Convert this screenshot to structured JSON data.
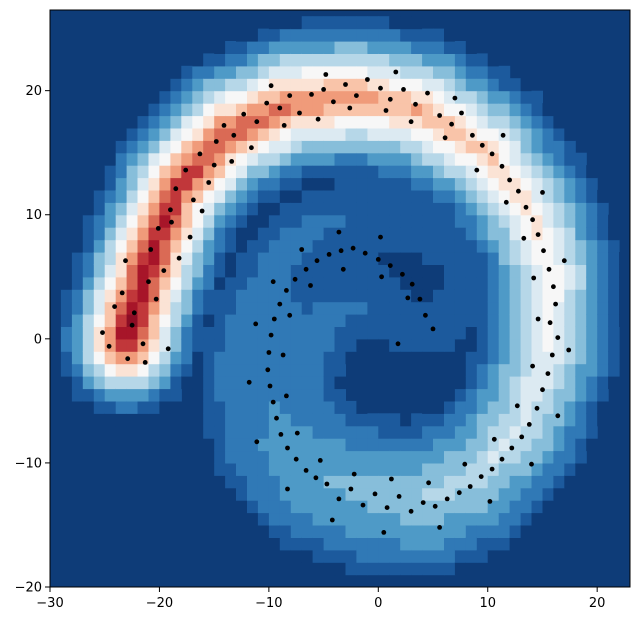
{
  "chart_data": {
    "type": "contour",
    "title": "",
    "xlabel": "",
    "ylabel": "",
    "xlim": [
      -30,
      23
    ],
    "ylim": [
      -20,
      26.5
    ],
    "xticks": [
      -30,
      -20,
      -10,
      0,
      10,
      20
    ],
    "yticks": [
      -20,
      -10,
      0,
      10,
      20
    ],
    "xtick_labels": [
      "−30",
      "−20",
      "−10",
      "0",
      "10",
      "20"
    ],
    "ytick_labels": [
      "−20",
      "−10",
      "0",
      "10",
      "20"
    ],
    "grid": false,
    "background_color": "#0e3c78",
    "colormap": "RdBu_r",
    "colormap_stops": [
      "#0e3c78",
      "#2166ac",
      "#4393c3",
      "#92c5de",
      "#d1e5f0",
      "#f7f7f7",
      "#fddbc7",
      "#f4a582",
      "#d6604d",
      "#b2182b",
      "#8c0d25"
    ],
    "field_model": "spiral: field value rises from about -1 (blue) at the inner end of the arm to about +1 (red) at the outer end",
    "spiral_arm_centerline": [
      {
        "x": 4,
        "y": 5
      },
      {
        "x": -1,
        "y": 7
      },
      {
        "x": -6,
        "y": 5
      },
      {
        "x": -9,
        "y": 1
      },
      {
        "x": -10,
        "y": -3
      },
      {
        "x": -9,
        "y": -8
      },
      {
        "x": -6,
        "y": -11
      },
      {
        "x": -1,
        "y": -12.5
      },
      {
        "x": 4,
        "y": -13
      },
      {
        "x": 9,
        "y": -11
      },
      {
        "x": 13,
        "y": -7
      },
      {
        "x": 15.5,
        "y": -1
      },
      {
        "x": 16,
        "y": 5
      },
      {
        "x": 14,
        "y": 10
      },
      {
        "x": 10,
        "y": 15
      },
      {
        "x": 4,
        "y": 18.5
      },
      {
        "x": -2,
        "y": 19.5
      },
      {
        "x": -8,
        "y": 19
      },
      {
        "x": -14,
        "y": 16.5
      },
      {
        "x": -18.5,
        "y": 12
      },
      {
        "x": -21,
        "y": 6
      },
      {
        "x": -23,
        "y": 0
      }
    ],
    "points": [
      {
        "x": -25.2,
        "y": 0.5
      },
      {
        "x": -24.1,
        "y": 2.6
      },
      {
        "x": -23.4,
        "y": 3.7
      },
      {
        "x": -23.1,
        "y": 6.3
      },
      {
        "x": -22.3,
        "y": 2.1
      },
      {
        "x": -22.9,
        "y": -1.6
      },
      {
        "x": -21.5,
        "y": -0.4
      },
      {
        "x": -21.0,
        "y": 4.6
      },
      {
        "x": -20.8,
        "y": 7.2
      },
      {
        "x": -20.1,
        "y": 8.9
      },
      {
        "x": -19.6,
        "y": 5.5
      },
      {
        "x": -19.2,
        "y": -0.8
      },
      {
        "x": -19.0,
        "y": 10.4
      },
      {
        "x": -18.5,
        "y": 12.1
      },
      {
        "x": -18.2,
        "y": 6.5
      },
      {
        "x": -17.6,
        "y": 13.6
      },
      {
        "x": -16.9,
        "y": 11.2
      },
      {
        "x": -16.3,
        "y": 14.9
      },
      {
        "x": -15.5,
        "y": 12.6
      },
      {
        "x": -14.8,
        "y": 15.9
      },
      {
        "x": -14.1,
        "y": 17.2
      },
      {
        "x": -13.2,
        "y": 16.4
      },
      {
        "x": -12.3,
        "y": 18.1
      },
      {
        "x": -11.1,
        "y": 17.5
      },
      {
        "x": -10.2,
        "y": 19.0
      },
      {
        "x": -9.0,
        "y": 18.6
      },
      {
        "x": -8.1,
        "y": 19.6
      },
      {
        "x": -7.2,
        "y": 18.2
      },
      {
        "x": -6.1,
        "y": 19.7
      },
      {
        "x": -5.0,
        "y": 20.1
      },
      {
        "x": -4.1,
        "y": 19.1
      },
      {
        "x": -3.0,
        "y": 20.5
      },
      {
        "x": -2.0,
        "y": 19.6
      },
      {
        "x": -1.0,
        "y": 20.9
      },
      {
        "x": 0.2,
        "y": 20.2
      },
      {
        "x": 1.1,
        "y": 19.3
      },
      {
        "x": 2.3,
        "y": 20.1
      },
      {
        "x": 3.4,
        "y": 18.9
      },
      {
        "x": 4.5,
        "y": 19.8
      },
      {
        "x": 5.6,
        "y": 18.0
      },
      {
        "x": 6.7,
        "y": 17.3
      },
      {
        "x": 7.6,
        "y": 18.2
      },
      {
        "x": 8.6,
        "y": 16.4
      },
      {
        "x": 9.5,
        "y": 15.6
      },
      {
        "x": 10.4,
        "y": 14.9
      },
      {
        "x": 11.3,
        "y": 13.9
      },
      {
        "x": 12.0,
        "y": 12.8
      },
      {
        "x": 12.8,
        "y": 11.9
      },
      {
        "x": 13.5,
        "y": 10.6
      },
      {
        "x": 14.1,
        "y": 9.6
      },
      {
        "x": 14.6,
        "y": 8.4
      },
      {
        "x": 15.1,
        "y": 7.1
      },
      {
        "x": 15.6,
        "y": 5.6
      },
      {
        "x": 16.0,
        "y": 4.2
      },
      {
        "x": 16.2,
        "y": 2.8
      },
      {
        "x": 15.7,
        "y": 1.3
      },
      {
        "x": 16.4,
        "y": 0.1
      },
      {
        "x": 15.9,
        "y": -1.3
      },
      {
        "x": 15.5,
        "y": -2.8
      },
      {
        "x": 15.0,
        "y": -4.1
      },
      {
        "x": 14.5,
        "y": -5.6
      },
      {
        "x": 13.8,
        "y": -6.9
      },
      {
        "x": 13.1,
        "y": -7.9
      },
      {
        "x": 12.2,
        "y": -8.8
      },
      {
        "x": 11.3,
        "y": -9.7
      },
      {
        "x": 10.4,
        "y": -10.5
      },
      {
        "x": 9.4,
        "y": -11.1
      },
      {
        "x": 8.4,
        "y": -11.9
      },
      {
        "x": 7.4,
        "y": -12.4
      },
      {
        "x": 6.3,
        "y": -12.9
      },
      {
        "x": 5.2,
        "y": -13.5
      },
      {
        "x": 4.1,
        "y": -13.2
      },
      {
        "x": 3.0,
        "y": -13.9
      },
      {
        "x": 1.9,
        "y": -12.7
      },
      {
        "x": 0.8,
        "y": -13.6
      },
      {
        "x": -0.3,
        "y": -12.5
      },
      {
        "x": -1.4,
        "y": -13.4
      },
      {
        "x": -2.5,
        "y": -12.1
      },
      {
        "x": -3.6,
        "y": -12.9
      },
      {
        "x": -4.7,
        "y": -11.7
      },
      {
        "x": -5.7,
        "y": -11.2
      },
      {
        "x": -6.6,
        "y": -10.6
      },
      {
        "x": -7.5,
        "y": -9.7
      },
      {
        "x": -8.3,
        "y": -8.8
      },
      {
        "x": -8.9,
        "y": -7.7
      },
      {
        "x": -9.3,
        "y": -6.4
      },
      {
        "x": -9.6,
        "y": -5.1
      },
      {
        "x": -9.9,
        "y": -3.8
      },
      {
        "x": -10.1,
        "y": -2.5
      },
      {
        "x": -10.0,
        "y": -1.1
      },
      {
        "x": -9.8,
        "y": 0.3
      },
      {
        "x": -9.5,
        "y": 1.6
      },
      {
        "x": -9.0,
        "y": 2.8
      },
      {
        "x": -8.4,
        "y": 3.9
      },
      {
        "x": -7.6,
        "y": 4.8
      },
      {
        "x": -6.6,
        "y": 5.6
      },
      {
        "x": -5.6,
        "y": 6.3
      },
      {
        "x": -4.5,
        "y": 6.8
      },
      {
        "x": -3.4,
        "y": 7.1
      },
      {
        "x": -2.3,
        "y": 7.3
      },
      {
        "x": -1.2,
        "y": 6.9
      },
      {
        "x": 0.0,
        "y": 6.4
      },
      {
        "x": 1.1,
        "y": 5.9
      },
      {
        "x": 2.2,
        "y": 5.2
      },
      {
        "x": 3.1,
        "y": 4.4
      },
      {
        "x": 3.8,
        "y": 3.2
      },
      {
        "x": 4.3,
        "y": 1.9
      },
      {
        "x": 1.8,
        "y": -0.4
      },
      {
        "x": -21.3,
        "y": -1.9
      },
      {
        "x": -22.5,
        "y": 1.1
      },
      {
        "x": -18.9,
        "y": 9.4
      },
      {
        "x": -16.1,
        "y": 10.3
      },
      {
        "x": -13.4,
        "y": 14.3
      },
      {
        "x": -11.6,
        "y": 15.4
      },
      {
        "x": -8.6,
        "y": 17.2
      },
      {
        "x": -5.5,
        "y": 17.7
      },
      {
        "x": -2.6,
        "y": 18.6
      },
      {
        "x": 0.7,
        "y": 18.4
      },
      {
        "x": 3.0,
        "y": 17.5
      },
      {
        "x": 6.1,
        "y": 16.2
      },
      {
        "x": 9.0,
        "y": 13.6
      },
      {
        "x": 11.7,
        "y": 11.0
      },
      {
        "x": 13.3,
        "y": 8.1
      },
      {
        "x": 14.2,
        "y": 4.9
      },
      {
        "x": 14.6,
        "y": 1.6
      },
      {
        "x": 14.1,
        "y": -2.2
      },
      {
        "x": 12.7,
        "y": -5.4
      },
      {
        "x": 10.6,
        "y": -8.1
      },
      {
        "x": 7.9,
        "y": -10.1
      },
      {
        "x": 4.6,
        "y": -11.6
      },
      {
        "x": 1.2,
        "y": -11.3
      },
      {
        "x": -2.2,
        "y": -10.9
      },
      {
        "x": -5.3,
        "y": -9.8
      },
      {
        "x": -7.4,
        "y": -7.6
      },
      {
        "x": -8.4,
        "y": -4.6
      },
      {
        "x": -8.7,
        "y": -1.3
      },
      {
        "x": -8.1,
        "y": 1.9
      },
      {
        "x": -6.2,
        "y": 4.3
      },
      {
        "x": -3.2,
        "y": 5.6
      },
      {
        "x": 0.3,
        "y": 5.0
      },
      {
        "x": 2.7,
        "y": 3.3
      },
      {
        "x": -24.6,
        "y": -0.6
      },
      {
        "x": -20.3,
        "y": 3.2
      },
      {
        "x": -17.2,
        "y": 8.2
      },
      {
        "x": -15.0,
        "y": 14.0
      },
      {
        "x": -9.8,
        "y": 20.4
      },
      {
        "x": -4.8,
        "y": 21.3
      },
      {
        "x": 1.6,
        "y": 21.5
      },
      {
        "x": 7.0,
        "y": 19.4
      },
      {
        "x": 11.4,
        "y": 16.4
      },
      {
        "x": 15.0,
        "y": 11.8
      },
      {
        "x": 17.0,
        "y": 6.3
      },
      {
        "x": 17.4,
        "y": -0.9
      },
      {
        "x": 16.4,
        "y": -6.2
      },
      {
        "x": 14.0,
        "y": -10.1
      },
      {
        "x": 10.2,
        "y": -13.1
      },
      {
        "x": 5.6,
        "y": -15.2
      },
      {
        "x": 0.5,
        "y": -15.6
      },
      {
        "x": -4.2,
        "y": -14.6
      },
      {
        "x": -8.3,
        "y": -12.1
      },
      {
        "x": -11.1,
        "y": -8.3
      },
      {
        "x": -11.8,
        "y": -3.5
      },
      {
        "x": -11.2,
        "y": 1.2
      },
      {
        "x": -9.6,
        "y": 4.6
      },
      {
        "x": -7.0,
        "y": 7.2
      },
      {
        "x": -3.6,
        "y": 8.6
      },
      {
        "x": 0.2,
        "y": 8.2
      },
      {
        "x": 5.0,
        "y": 0.8
      }
    ]
  }
}
